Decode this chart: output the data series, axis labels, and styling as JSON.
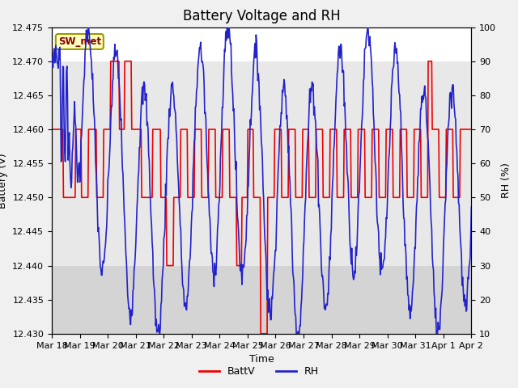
{
  "title": "Battery Voltage and RH",
  "xlabel": "Time",
  "ylabel_left": "Battery (V)",
  "ylabel_right": "RH (%)",
  "ylim_left": [
    12.43,
    12.475
  ],
  "ylim_right": [
    10,
    100
  ],
  "yticks_left": [
    12.43,
    12.435,
    12.44,
    12.445,
    12.45,
    12.455,
    12.46,
    12.465,
    12.47,
    12.475
  ],
  "yticks_right": [
    10,
    20,
    30,
    40,
    50,
    60,
    70,
    80,
    90,
    100
  ],
  "xtick_labels": [
    "Mar 18",
    "Mar 19",
    "Mar 20",
    "Mar 21",
    "Mar 22",
    "Mar 23",
    "Mar 24",
    "Mar 25",
    "Mar 26",
    "Mar 27",
    "Mar 28",
    "Mar 29",
    "Mar 30",
    "Mar 31",
    "Apr 1",
    "Apr 2"
  ],
  "station_label": "SW_met",
  "bg_color": "#f0f0f0",
  "plot_bg_color": "#f0f0f0",
  "band_top_color": "#ffffff",
  "band_mid_color": "#e8e8e8",
  "band_bot_color": "#d4d4d4",
  "batt_color": "#ee0000",
  "rh_color": "#2222cc",
  "legend_batt": "BattV",
  "legend_rh": "RH",
  "title_fontsize": 12,
  "axis_fontsize": 9,
  "tick_fontsize": 8
}
